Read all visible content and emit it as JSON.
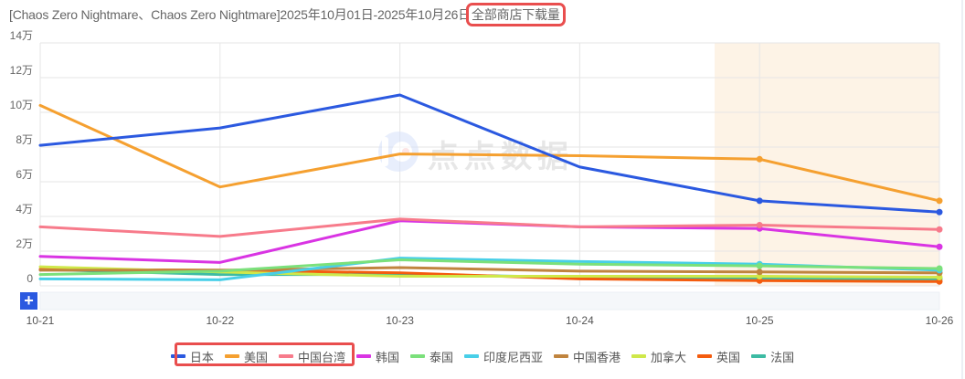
{
  "title": {
    "prefix": "[Chaos Zero Nightmare、Chaos Zero Nightmare]2025年10月01日-2025年10月26日",
    "metric": "全部商店下载量"
  },
  "watermark": "点点数据",
  "zoom_button": "+",
  "colors": {
    "accent": "#2b59e0",
    "highlight_box": "#e94e4e",
    "shaded_region": "#fdf3e6"
  },
  "chart_data": {
    "type": "line",
    "title": "[Chaos Zero Nightmare、Chaos Zero Nightmare]2025年10月01日-2025年10月26日全部商店下载量",
    "xlabel": "",
    "ylabel": "",
    "x": [
      "10-21",
      "10-22",
      "10-23",
      "10-24",
      "10-25",
      "10-26"
    ],
    "ylim": [
      0,
      140000
    ],
    "yticks": [
      0,
      20000,
      40000,
      60000,
      80000,
      100000,
      120000,
      140000
    ],
    "ytick_labels": [
      "0",
      "2万",
      "4万",
      "6万",
      "8万",
      "10万",
      "12万",
      "14万"
    ],
    "grid": true,
    "legend_position": "bottom",
    "shaded_range": [
      "10-24.75",
      "10-26"
    ],
    "series": [
      {
        "name": "日本",
        "color": "#2b59e0",
        "values": [
          81000,
          91000,
          110000,
          68500,
          49000,
          42500
        ]
      },
      {
        "name": "美国",
        "color": "#f5a030",
        "values": [
          104000,
          57000,
          76000,
          75000,
          73000,
          49000
        ]
      },
      {
        "name": "中国台湾",
        "color": "#f77b8b",
        "values": [
          34000,
          28500,
          38500,
          34000,
          35000,
          32500
        ]
      },
      {
        "name": "韩国",
        "color": "#d934e3",
        "values": [
          17000,
          13500,
          37500,
          34000,
          33000,
          22500
        ]
      },
      {
        "name": "泰国",
        "color": "#7be07b",
        "values": [
          6500,
          8500,
          15000,
          12500,
          11500,
          10000
        ]
      },
      {
        "name": "印度尼西亚",
        "color": "#48cfe8",
        "values": [
          4000,
          3500,
          16000,
          14000,
          12500,
          9000
        ]
      },
      {
        "name": "中国香港",
        "color": "#c0843e",
        "values": [
          9000,
          9000,
          10500,
          8500,
          8000,
          7500
        ]
      },
      {
        "name": "加拿大",
        "color": "#cfe84a",
        "values": [
          11000,
          8000,
          5500,
          5500,
          5500,
          5000
        ]
      },
      {
        "name": "英国",
        "color": "#f45c0e",
        "values": [
          9500,
          9000,
          7500,
          4000,
          3000,
          2500
        ]
      },
      {
        "name": "法国",
        "color": "#3dbba3",
        "values": [
          9500,
          6500,
          6500,
          5000,
          4000,
          4000
        ]
      }
    ]
  },
  "legend": {
    "items": [
      {
        "label": "日本",
        "color": "#2b59e0"
      },
      {
        "label": "美国",
        "color": "#f5a030"
      },
      {
        "label": "中国台湾",
        "color": "#f77b8b"
      },
      {
        "label": "韩国",
        "color": "#d934e3"
      },
      {
        "label": "泰国",
        "color": "#7be07b"
      },
      {
        "label": "印度尼西亚",
        "color": "#48cfe8"
      },
      {
        "label": "中国香港",
        "color": "#c0843e"
      },
      {
        "label": "加拿大",
        "color": "#cfe84a"
      },
      {
        "label": "英国",
        "color": "#f45c0e"
      },
      {
        "label": "法国",
        "color": "#3dbba3"
      }
    ]
  }
}
